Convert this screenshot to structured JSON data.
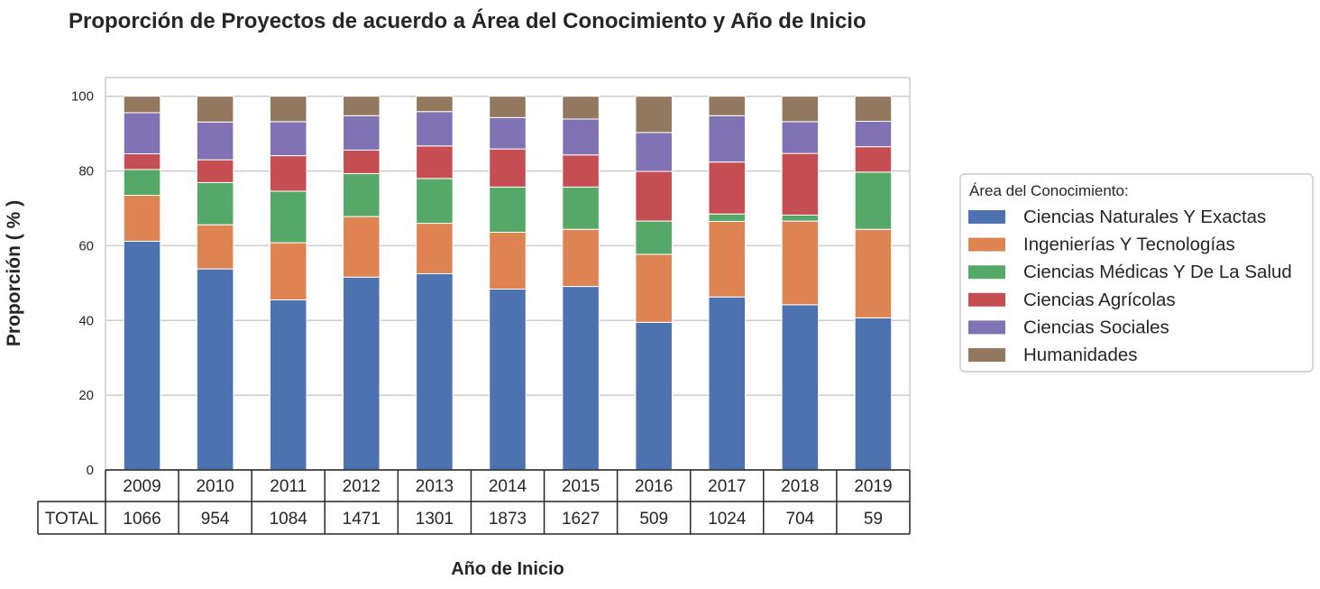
{
  "chart_data": {
    "type": "bar",
    "stacked": true,
    "title": "Proporción de Proyectos de acuerdo a  Área del Conocimiento  y  Año de Inicio",
    "xlabel": "Año de Inicio",
    "ylabel": "Proporción  ( % )",
    "ylim": [
      0,
      105
    ],
    "yticks": [
      0,
      20,
      40,
      60,
      80,
      100
    ],
    "grid": true,
    "categories": [
      "2009",
      "2010",
      "2011",
      "2012",
      "2013",
      "2014",
      "2015",
      "2016",
      "2017",
      "2018",
      "2019"
    ],
    "series": [
      {
        "name": "Ciencias Naturales Y Exactas",
        "color": "#4c72b0",
        "values": [
          61.2,
          53.8,
          45.5,
          51.6,
          52.5,
          48.4,
          49.1,
          39.5,
          46.3,
          44.2,
          40.7
        ]
      },
      {
        "name": "Ingenierías Y Tecnologías",
        "color": "#dd8452",
        "values": [
          12.3,
          11.8,
          15.3,
          16.2,
          13.5,
          15.2,
          15.3,
          18.2,
          20.2,
          22.4,
          23.7
        ]
      },
      {
        "name": "Ciencias Médicas Y De La Salud",
        "color": "#55a868",
        "values": [
          6.9,
          11.3,
          13.8,
          11.5,
          12.0,
          12.1,
          11.3,
          8.9,
          2.0,
          1.6,
          15.3
        ]
      },
      {
        "name": "Ciencias Agrícolas",
        "color": "#c44e52",
        "values": [
          4.2,
          6.1,
          9.5,
          6.3,
          8.7,
          10.2,
          8.6,
          13.3,
          13.9,
          16.5,
          6.8
        ]
      },
      {
        "name": "Ciencias Sociales",
        "color": "#8172b3",
        "values": [
          11.0,
          10.1,
          9.1,
          9.2,
          9.2,
          8.4,
          9.6,
          10.4,
          12.4,
          8.5,
          6.8
        ]
      },
      {
        "name": "Humanidades",
        "color": "#937860",
        "values": [
          4.4,
          6.9,
          6.8,
          5.2,
          4.1,
          5.7,
          6.1,
          9.7,
          5.2,
          6.8,
          6.7
        ]
      }
    ],
    "legend": {
      "title": "Área del Conocimiento:",
      "position": "right"
    },
    "table": {
      "row_label": "TOTAL",
      "values": [
        "1066",
        "954",
        "1084",
        "1471",
        "1301",
        "1873",
        "1627",
        "509",
        "1024",
        "704",
        "59"
      ]
    }
  }
}
